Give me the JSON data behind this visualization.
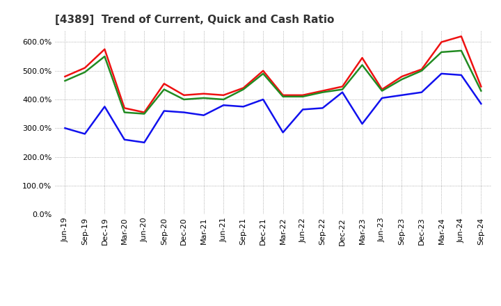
{
  "title": "[4389]  Trend of Current, Quick and Cash Ratio",
  "x_labels": [
    "Jun-19",
    "Sep-19",
    "Dec-19",
    "Mar-20",
    "Jun-20",
    "Sep-20",
    "Dec-20",
    "Mar-21",
    "Jun-21",
    "Sep-21",
    "Dec-21",
    "Mar-22",
    "Jun-22",
    "Sep-22",
    "Dec-22",
    "Mar-23",
    "Jun-23",
    "Sep-23",
    "Dec-23",
    "Mar-24",
    "Jun-24",
    "Sep-24"
  ],
  "current_ratio": [
    480,
    510,
    575,
    370,
    355,
    455,
    415,
    420,
    415,
    440,
    500,
    415,
    415,
    430,
    445,
    545,
    435,
    480,
    505,
    600,
    620,
    445
  ],
  "quick_ratio": [
    465,
    495,
    550,
    355,
    350,
    435,
    400,
    405,
    400,
    435,
    490,
    410,
    410,
    425,
    435,
    520,
    430,
    470,
    500,
    565,
    570,
    430
  ],
  "cash_ratio": [
    300,
    280,
    375,
    260,
    250,
    360,
    355,
    345,
    380,
    375,
    400,
    285,
    365,
    370,
    425,
    315,
    405,
    415,
    425,
    490,
    485,
    385
  ],
  "current_color": "#EE1111",
  "quick_color": "#228B22",
  "cash_color": "#1111EE",
  "ylim": [
    0,
    640
  ],
  "yticks": [
    0,
    100,
    200,
    300,
    400,
    500,
    600
  ],
  "bg_color": "#FFFFFF",
  "grid_color": "#999999",
  "line_width": 1.8,
  "title_fontsize": 11,
  "tick_fontsize": 8,
  "legend_fontsize": 9
}
